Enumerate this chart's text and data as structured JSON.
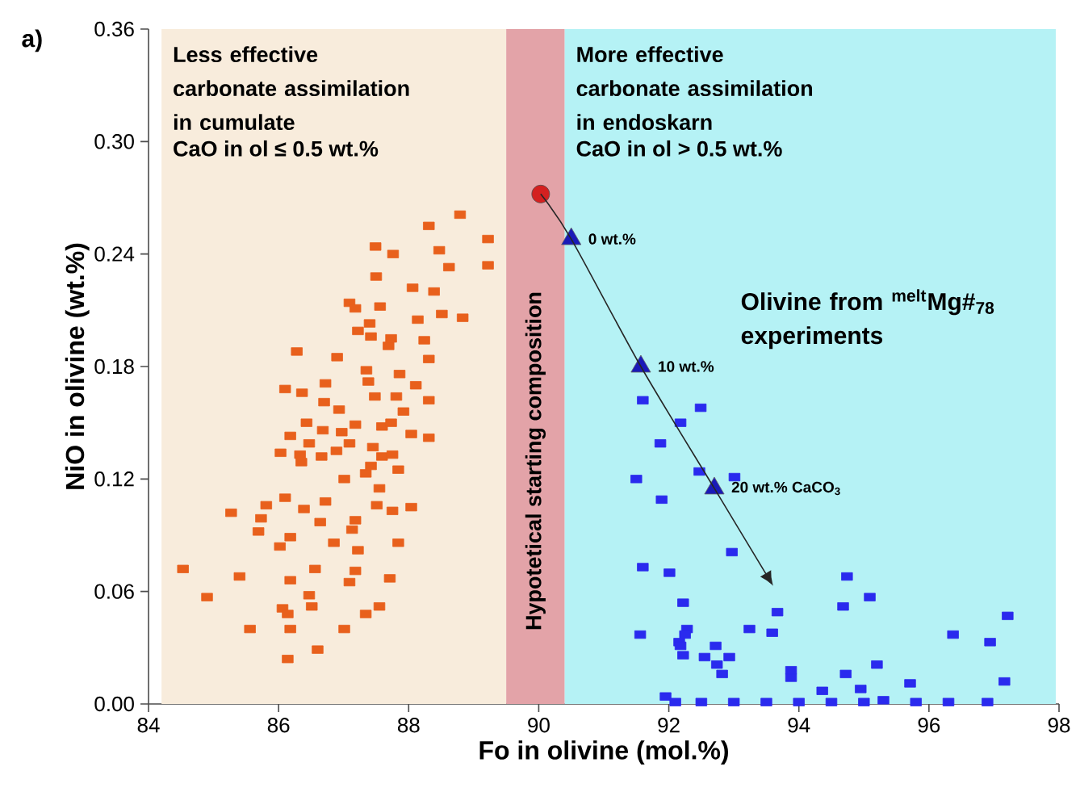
{
  "chart_data": {
    "type": "scatter",
    "xlabel": "Fo in olivine (mol.%)",
    "ylabel": "NiO in olivine (wt.%)",
    "xlim": [
      84,
      98
    ],
    "xticks": [
      84,
      86,
      88,
      90,
      92,
      94,
      96,
      98
    ],
    "ylim": [
      0,
      0.36
    ],
    "yticks": [
      {
        "value": 0,
        "label": "0.00"
      },
      {
        "value": 0.06,
        "label": "0.06"
      },
      {
        "value": 0.12,
        "label": "0.12"
      },
      {
        "value": 0.18,
        "label": "0.18"
      },
      {
        "value": 0.24,
        "label": "0.24"
      },
      {
        "value": 0.3,
        "label": "0.30"
      },
      {
        "value": 0.36,
        "label": "0.36"
      }
    ],
    "bands": [
      {
        "axis": "x",
        "from": 84.2,
        "to": 89.5,
        "color": "#f8ecdc",
        "label": "Less effective carbonate assimilation in cumulate"
      },
      {
        "axis": "x",
        "from": 89.5,
        "to": 90.4,
        "color": "#e3a3a8",
        "label": "Hypotetical starting composition"
      },
      {
        "axis": "x",
        "from": 90.4,
        "to": 97.95,
        "color": "#b5f2f5",
        "label": "More effective carbonate assimilation in endoskarn"
      }
    ],
    "annotations": [
      "a)",
      "CaO in ol ≤ 0.5 wt.%",
      "CaO in ol > 0.5 wt.%",
      "Olivine from $^{melt}$Mg#$_{78}$ experiments",
      {
        "text": "0 wt.%",
        "x": 90.5,
        "y": 0.248
      },
      {
        "text": "10 wt.%",
        "x": 91.57,
        "y": 0.18
      },
      {
        "text": "20 wt.% CaCO$_{3}$",
        "x": 92.7,
        "y": 0.115
      }
    ],
    "series": [
      {
        "color": "#e8601c",
        "marker": "square",
        "x": [
          88.79,
          88.31,
          89.22,
          87.49,
          87.76,
          88.47,
          87.5,
          88.62,
          89.22,
          88.06,
          88.39,
          87.09,
          87.18,
          87.56,
          88.14,
          88.51,
          88.83,
          87.4,
          87.22,
          87.42,
          87.73,
          87.69,
          88.24,
          86.28,
          86.9,
          87.35,
          88.31,
          87.86,
          86.72,
          87.38,
          88.11,
          86.1,
          86.36,
          87.48,
          87.81,
          88.31,
          86.7,
          86.93,
          87.92,
          86.43,
          86.68,
          86.97,
          87.18,
          87.59,
          87.73,
          88.04,
          88.31,
          86.18,
          86.47,
          87.09,
          87.45,
          86.03,
          86.33,
          86.66,
          86.89,
          87.59,
          87.75,
          86.35,
          87.42,
          87.84,
          87.01,
          87.34,
          87.55,
          85.27,
          85.81,
          86.1,
          86.39,
          86.72,
          87.51,
          87.75,
          88.04,
          85.73,
          86.64,
          87.18,
          85.69,
          87.13,
          86.18,
          86.02,
          86.85,
          87.22,
          87.84,
          84.53,
          85.4,
          86.56,
          87.18,
          86.18,
          87.09,
          87.71,
          84.9,
          86.47,
          86.06,
          86.51,
          86.14,
          87.34,
          87.55,
          85.56,
          86.18,
          87.01,
          86.14,
          86.6
        ],
        "values": [
          0.261,
          0.255,
          0.248,
          0.244,
          0.24,
          0.242,
          0.228,
          0.233,
          0.234,
          0.222,
          0.22,
          0.214,
          0.211,
          0.212,
          0.205,
          0.208,
          0.206,
          0.203,
          0.199,
          0.196,
          0.195,
          0.191,
          0.194,
          0.188,
          0.185,
          0.178,
          0.184,
          0.176,
          0.171,
          0.172,
          0.17,
          0.168,
          0.166,
          0.164,
          0.164,
          0.162,
          0.161,
          0.157,
          0.156,
          0.15,
          0.146,
          0.145,
          0.149,
          0.148,
          0.15,
          0.144,
          0.142,
          0.143,
          0.139,
          0.139,
          0.137,
          0.134,
          0.133,
          0.132,
          0.135,
          0.132,
          0.133,
          0.129,
          0.127,
          0.125,
          0.12,
          0.123,
          0.115,
          0.102,
          0.106,
          0.11,
          0.104,
          0.108,
          0.106,
          0.103,
          0.105,
          0.099,
          0.097,
          0.098,
          0.092,
          0.093,
          0.089,
          0.084,
          0.086,
          0.082,
          0.086,
          0.072,
          0.068,
          0.072,
          0.071,
          0.066,
          0.065,
          0.067,
          0.057,
          0.058,
          0.051,
          0.052,
          0.048,
          0.048,
          0.052,
          0.04,
          0.04,
          0.04,
          0.024,
          0.029
        ]
      },
      {
        "color": "#2a2aee",
        "marker": "square",
        "x": [
          91.6,
          92.49,
          92.18,
          91.87,
          91.5,
          92.47,
          93.01,
          91.89,
          92.97,
          91.6,
          92.01,
          94.74,
          95.09,
          94.68,
          92.22,
          93.67,
          97.21,
          91.56,
          92.28,
          92.25,
          93.24,
          93.59,
          96.37,
          96.94,
          92.16,
          92.18,
          92.72,
          92.22,
          92.55,
          92.93,
          92.74,
          95.2,
          93.88,
          92.82,
          93.88,
          94.72,
          97.16,
          95.71,
          94.36,
          94.95,
          91.95,
          92.1,
          92.5,
          93.0,
          93.5,
          94.0,
          94.5,
          95.0,
          95.3,
          95.8,
          96.3,
          96.9
        ],
        "values": [
          0.162,
          0.158,
          0.15,
          0.139,
          0.12,
          0.124,
          0.121,
          0.109,
          0.081,
          0.073,
          0.07,
          0.068,
          0.057,
          0.052,
          0.054,
          0.049,
          0.047,
          0.037,
          0.04,
          0.037,
          0.04,
          0.038,
          0.037,
          0.033,
          0.033,
          0.031,
          0.031,
          0.026,
          0.025,
          0.025,
          0.021,
          0.021,
          0.018,
          0.016,
          0.014,
          0.016,
          0.012,
          0.011,
          0.007,
          0.008,
          0.004,
          0.001,
          0.001,
          0.001,
          0.001,
          0.001,
          0.001,
          0.001,
          0.002,
          0.001,
          0.001,
          0.001
        ]
      },
      {
        "color": "#d42020",
        "marker": "circle",
        "x": [
          90.03
        ],
        "values": [
          0.272
        ]
      },
      {
        "color": "#1a1ab8",
        "marker": "triangle",
        "x": [
          90.5,
          91.57,
          92.7
        ],
        "values": [
          0.248,
          0.18,
          0.115
        ]
      }
    ]
  }
}
